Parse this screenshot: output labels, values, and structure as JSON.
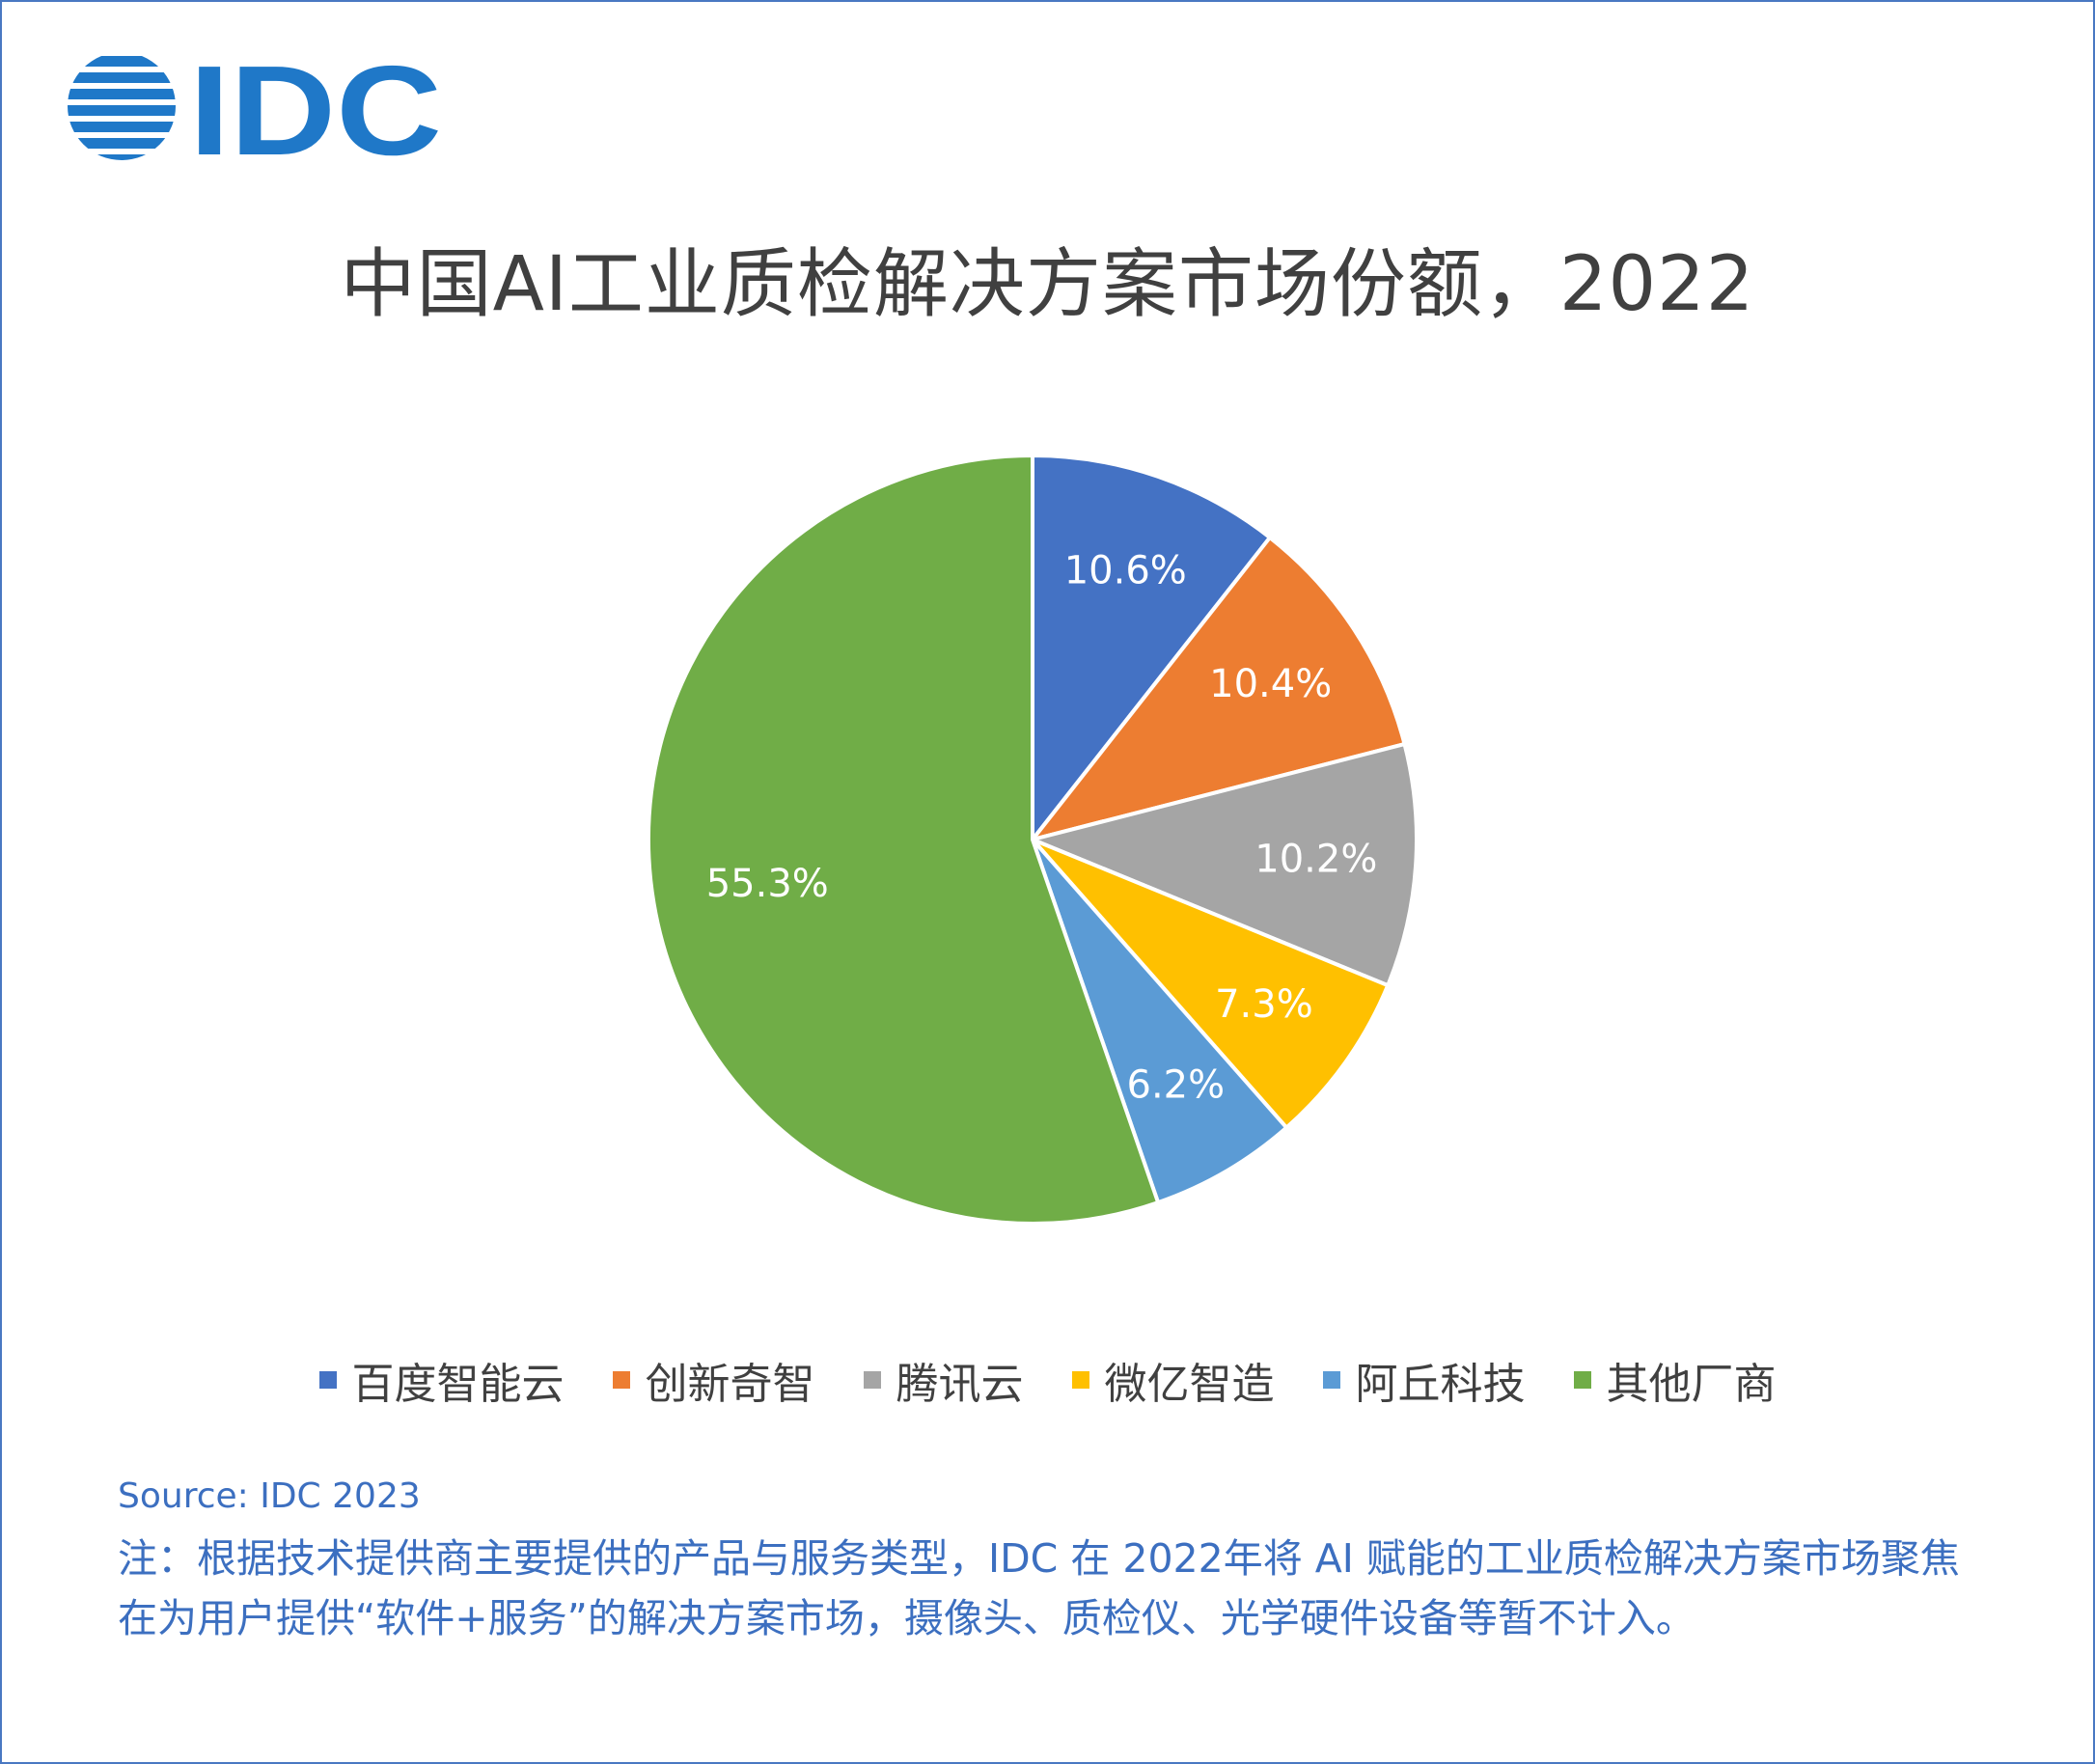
{
  "brand": {
    "logo_text": "IDC",
    "logo_color": "#1f78c8"
  },
  "chart_data": {
    "type": "pie",
    "title": "中国AI工业质检解决方案市场份额，2022",
    "categories": [
      "百度智能云",
      "创新奇智",
      "腾讯云",
      "微亿智造",
      "阿丘科技",
      "其他厂商"
    ],
    "values": [
      10.6,
      10.4,
      10.2,
      7.3,
      6.2,
      55.3
    ],
    "unit": "%",
    "data_labels": [
      "10.6%",
      "10.4%",
      "10.2%",
      "7.3%",
      "6.2%",
      "55.3%"
    ],
    "colors": [
      "#4472c4",
      "#ed7d31",
      "#a5a5a5",
      "#ffc000",
      "#5b9bd5",
      "#70ad47"
    ],
    "legend_position": "bottom",
    "start_angle": "top (12 o'clock), clockwise"
  },
  "footer": {
    "source": "Source: IDC 2023",
    "note": "注：根据技术提供商主要提供的产品与服务类型，IDC 在 2022年将 AI 赋能的工业质检解决方案市场聚焦在为用户提供“软件+服务”的解决方案市场，摄像头、质检仪、光学硬件设备等暂不计入。"
  }
}
